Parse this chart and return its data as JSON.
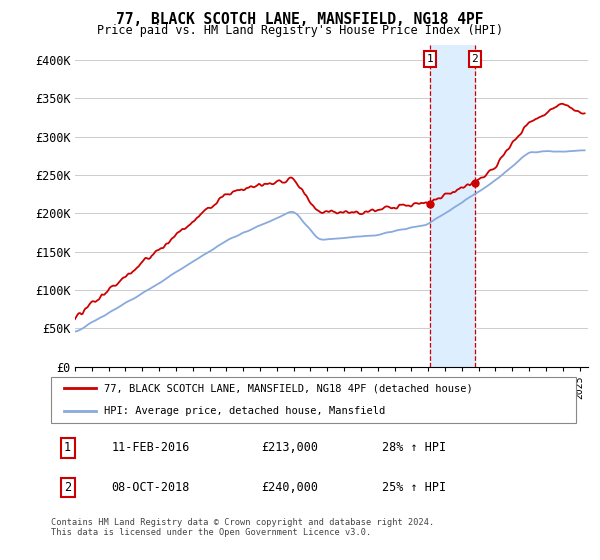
{
  "title": "77, BLACK SCOTCH LANE, MANSFIELD, NG18 4PF",
  "subtitle": "Price paid vs. HM Land Registry's House Price Index (HPI)",
  "ylim": [
    0,
    420000
  ],
  "yticks": [
    0,
    50000,
    100000,
    150000,
    200000,
    250000,
    300000,
    350000,
    400000
  ],
  "ytick_labels": [
    "£0",
    "£50K",
    "£100K",
    "£150K",
    "£200K",
    "£250K",
    "£300K",
    "£350K",
    "£400K"
  ],
  "sale1": {
    "date_num": 2016.1,
    "price": 213000,
    "label": "1",
    "date_str": "11-FEB-2016",
    "pct": "28% ↑ HPI"
  },
  "sale2": {
    "date_num": 2018.77,
    "price": 240000,
    "label": "2",
    "date_str": "08-OCT-2018",
    "pct": "25% ↑ HPI"
  },
  "legend_line1": "77, BLACK SCOTCH LANE, MANSFIELD, NG18 4PF (detached house)",
  "legend_line2": "HPI: Average price, detached house, Mansfield",
  "footer": "Contains HM Land Registry data © Crown copyright and database right 2024.\nThis data is licensed under the Open Government Licence v3.0.",
  "red_color": "#cc0000",
  "blue_color": "#88aadd",
  "shade_color": "#ddeeff",
  "grid_color": "#cccccc",
  "background": "#ffffff",
  "xlim_start": 1995,
  "xlim_end": 2025.5
}
